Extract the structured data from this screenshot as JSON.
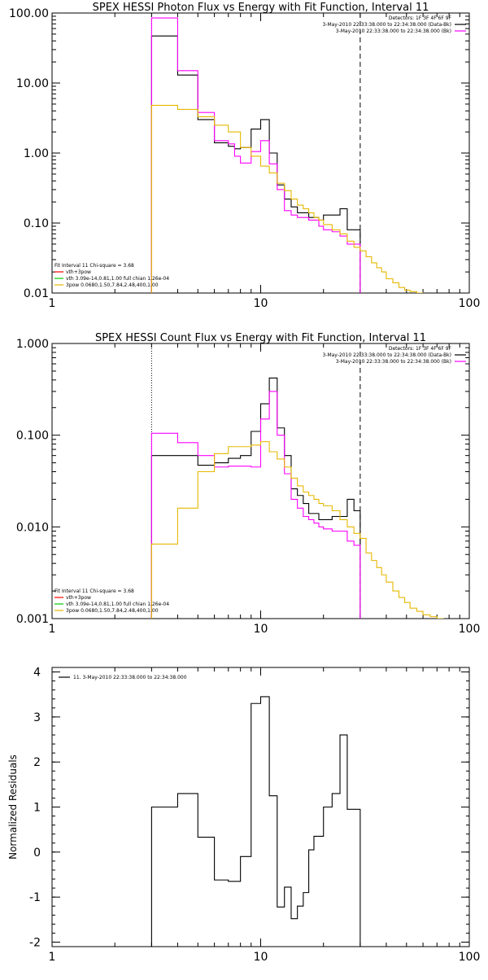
{
  "chart_data": [
    {
      "type": "line",
      "subtype": "step",
      "title": "SPEX HESSI Photon Flux vs Energy with Fit Function, Interval 11",
      "xlabel": "",
      "ylabel": "",
      "x_scale": "log",
      "y_scale": "log",
      "xlim": [
        1,
        100
      ],
      "ylim": [
        0.01,
        100
      ],
      "x_ticks": [
        "1",
        "10",
        "100"
      ],
      "y_ticks": [
        "0.01",
        "0.10",
        "1.00",
        "10.00",
        "100.00"
      ],
      "info_lines": [
        "Detectors: 1F 3F 4F 6F 9F",
        "3-May-2010 22:33:38.000 to 22:34:38.000 (Data-Bk)",
        "3-May-2010 22:33:38.000 to 22:34:38.000 (Bk)"
      ],
      "info_colors": [
        "",
        "#000000",
        "#ff00ff"
      ],
      "legend": [
        "Fit Interval 11   Chi-square = 3.68",
        "vth+3pow",
        "vth 3.09e-14,0.81,1.00  full chian 1.26e-04",
        "3pow 0.0680,1.50,7.84,2.48,400,1.00"
      ],
      "legend_colors": [
        "#000000",
        "#ff0000",
        "#00cc00",
        "#e6b800"
      ],
      "fit_range": [
        3.0,
        30.0
      ],
      "series": [
        {
          "name": "Data-Bk",
          "color": "#000000",
          "edges": [
            3.0,
            3.5,
            4.0,
            5.0,
            6.0,
            7.0,
            7.5,
            8.0,
            9.0,
            10.0,
            11.0,
            12.0,
            13.0,
            14.0,
            15.0,
            17.0,
            19.0,
            20.0,
            22.0,
            24.0,
            26.0,
            30.0
          ],
          "values": [
            47,
            47,
            13,
            3.0,
            1.4,
            1.25,
            1.15,
            1.2,
            2.2,
            3.0,
            1.0,
            0.35,
            0.22,
            0.17,
            0.14,
            0.12,
            0.11,
            0.13,
            0.13,
            0.16,
            0.08
          ]
        },
        {
          "name": "Bk",
          "color": "#ff00ff",
          "edges": [
            3.0,
            3.5,
            4.0,
            5.0,
            6.0,
            7.0,
            7.5,
            8.0,
            9.0,
            10.0,
            11.0,
            12.0,
            13.0,
            14.0,
            15.0,
            17.0,
            19.0,
            20.0,
            22.0,
            24.0,
            26.0,
            30.0
          ],
          "values": [
            85,
            85,
            15,
            3.8,
            1.5,
            1.35,
            0.9,
            0.72,
            1.05,
            1.5,
            0.7,
            0.3,
            0.15,
            0.13,
            0.12,
            0.11,
            0.09,
            0.08,
            0.075,
            0.065,
            0.05
          ]
        },
        {
          "name": "vth+3pow",
          "color": "#e6b800",
          "edges": [
            3.0,
            4.0,
            5.0,
            6.0,
            7.0,
            8.0,
            9.0,
            10.0,
            11.0,
            12.0,
            13.0,
            14.0,
            15.0,
            16.0,
            17.0,
            18.0,
            19.0,
            20.0,
            22.0,
            24.0,
            26.0,
            28.0,
            30.0,
            32.0,
            34.0,
            36.0,
            38.0,
            40.0,
            43.0,
            46.0,
            49.0,
            52.0,
            56.0,
            60.0
          ],
          "values": [
            4.8,
            4.2,
            3.3,
            2.5,
            2.0,
            1.2,
            0.9,
            0.65,
            0.52,
            0.37,
            0.29,
            0.22,
            0.18,
            0.16,
            0.14,
            0.12,
            0.11,
            0.095,
            0.08,
            0.07,
            0.055,
            0.045,
            0.04,
            0.033,
            0.027,
            0.023,
            0.02,
            0.016,
            0.014,
            0.012,
            0.011,
            0.0105,
            0.01
          ]
        }
      ]
    },
    {
      "type": "line",
      "subtype": "step",
      "title": "SPEX HESSI Count Flux vs Energy with Fit Function, Interval 11",
      "xlabel": "",
      "ylabel": "",
      "x_scale": "log",
      "y_scale": "log",
      "xlim": [
        1,
        100
      ],
      "ylim": [
        0.001,
        1
      ],
      "x_ticks": [
        "1",
        "10",
        "100"
      ],
      "y_ticks": [
        "0.001",
        "0.010",
        "0.100",
        "1.000"
      ],
      "info_lines": [
        "Detectors: 1F 3F 4F 6F 9F",
        "3-May-2010 22:33:38.000 to 22:34:38.000 (Data-Bk)",
        "3-May-2010 22:33:38.000 to 22:34:38.000 (Bk)"
      ],
      "info_colors": [
        "",
        "#000000",
        "#ff00ff"
      ],
      "legend": [
        "Fit Interval 11   Chi-square = 3.68",
        "vth+3pow",
        "vth 3.09e-14,0.81,1.00  full chian 1.26e-04",
        "3pow 0.0680,1.50,7.84,2.48,400,1.00"
      ],
      "legend_colors": [
        "#000000",
        "#ff0000",
        "#00cc00",
        "#e6b800"
      ],
      "fit_range": [
        3.0,
        30.0
      ],
      "series": [
        {
          "name": "Data-Bk",
          "color": "#000000",
          "edges": [
            3.0,
            4.0,
            5.0,
            6.0,
            7.0,
            8.0,
            9.0,
            10.0,
            11.0,
            12.0,
            13.0,
            14.0,
            15.0,
            16.0,
            17.0,
            18.0,
            19.0,
            20.0,
            22.0,
            24.0,
            26.0,
            28.0,
            30.0
          ],
          "values": [
            0.06,
            0.06,
            0.047,
            0.05,
            0.056,
            0.06,
            0.11,
            0.22,
            0.42,
            0.12,
            0.06,
            0.026,
            0.022,
            0.018,
            0.014,
            0.014,
            0.012,
            0.012,
            0.013,
            0.013,
            0.02,
            0.015
          ]
        },
        {
          "name": "Bk",
          "color": "#ff00ff",
          "edges": [
            3.0,
            4.0,
            5.0,
            6.0,
            7.0,
            8.0,
            9.0,
            10.0,
            11.0,
            12.0,
            13.0,
            14.0,
            15.0,
            16.0,
            17.0,
            18.0,
            19.0,
            20.0,
            22.0,
            24.0,
            26.0,
            28.0,
            30.0
          ],
          "values": [
            0.105,
            0.083,
            0.06,
            0.045,
            0.046,
            0.046,
            0.045,
            0.15,
            0.3,
            0.1,
            0.038,
            0.02,
            0.016,
            0.013,
            0.012,
            0.011,
            0.01,
            0.0095,
            0.009,
            0.009,
            0.007,
            0.0063
          ]
        },
        {
          "name": "vth+3pow",
          "color": "#e6b800",
          "edges": [
            3.0,
            4.0,
            5.0,
            6.0,
            7.0,
            8.0,
            9.0,
            10.0,
            11.0,
            12.0,
            13.0,
            14.0,
            15.0,
            16.0,
            17.0,
            18.0,
            19.0,
            20.0,
            22.0,
            24.0,
            26.0,
            28.0,
            30.0,
            32.0,
            34.0,
            36.0,
            38.0,
            40.0,
            43.0,
            46.0,
            49.0,
            52.0,
            56.0,
            60.0,
            65.0,
            70.0,
            75.0
          ],
          "values": [
            0.0065,
            0.016,
            0.04,
            0.063,
            0.075,
            0.075,
            0.078,
            0.085,
            0.066,
            0.055,
            0.045,
            0.034,
            0.028,
            0.024,
            0.022,
            0.02,
            0.018,
            0.017,
            0.015,
            0.012,
            0.01,
            0.0085,
            0.0075,
            0.0052,
            0.0043,
            0.0036,
            0.003,
            0.0025,
            0.002,
            0.0017,
            0.0015,
            0.0013,
            0.0012,
            0.0011,
            0.00105,
            0.001
          ]
        }
      ]
    },
    {
      "type": "line",
      "subtype": "step",
      "title": "",
      "xlabel": "",
      "ylabel": "Normalized Residuals",
      "x_scale": "log",
      "y_scale": "linear",
      "xlim": [
        1,
        100
      ],
      "ylim": [
        -2.1,
        4.1
      ],
      "x_ticks": [
        "1",
        "10",
        "100"
      ],
      "y_ticks": [
        "-2",
        "-1",
        "0",
        "1",
        "2",
        "3",
        "4"
      ],
      "legend": [
        "11.  3-May-2010 22:33:38.000 to 22:34:38.000"
      ],
      "series": [
        {
          "name": "11.  3-May-2010 22:33:38.000 to 22:34:38.000",
          "color": "#000000",
          "edges": [
            3.0,
            4.0,
            5.0,
            6.0,
            7.0,
            8.0,
            9.0,
            10.0,
            11.0,
            12.0,
            13.0,
            14.0,
            15.0,
            16.0,
            17.0,
            18.0,
            20.0,
            22.0,
            24.0,
            26.0,
            28.0,
            30.0
          ],
          "values": [
            1.0,
            1.3,
            0.33,
            -0.62,
            -0.65,
            -0.1,
            3.3,
            3.45,
            1.25,
            -1.22,
            -0.78,
            -1.48,
            -1.2,
            -0.9,
            0.05,
            0.35,
            1.0,
            1.3,
            2.6,
            0.95,
            0.95
          ]
        }
      ]
    }
  ]
}
